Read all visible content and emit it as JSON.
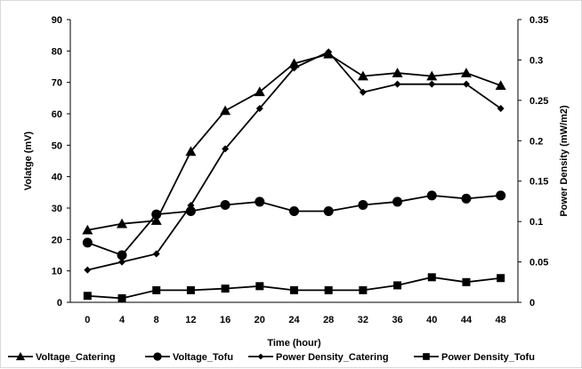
{
  "chart_data": {
    "type": "line",
    "x": [
      0,
      4,
      8,
      12,
      16,
      20,
      24,
      28,
      32,
      36,
      40,
      44,
      48
    ],
    "xlabel": "Time (hour)",
    "ylabel": "Volatge (mV)",
    "y2label": "Power Density (mW/m2)",
    "ylim": [
      0,
      90
    ],
    "y2lim": [
      0,
      0.35
    ],
    "yticks": [
      "0",
      "10",
      "20",
      "30",
      "40",
      "50",
      "60",
      "70",
      "80",
      "90"
    ],
    "y2ticks": [
      "0",
      "0.05",
      "0.1",
      "0.15",
      "0.2",
      "0.25",
      "0.3",
      "0.35"
    ],
    "grid": false,
    "legend_position": "bottom",
    "series": [
      {
        "name": "Voltage_Catering",
        "axis": "left",
        "marker": "triangle",
        "values": [
          23,
          25,
          26,
          48,
          61,
          67,
          76,
          79,
          72,
          73,
          72,
          73,
          69
        ]
      },
      {
        "name": "Voltage_Tofu",
        "axis": "left",
        "marker": "circle",
        "values": [
          19,
          15,
          28,
          29,
          31,
          32,
          29,
          29,
          31,
          32,
          34,
          33,
          34
        ]
      },
      {
        "name": "Power Density_Catering",
        "axis": "right",
        "marker": "diamond",
        "values": [
          0.04,
          0.05,
          0.06,
          0.12,
          0.19,
          0.24,
          0.29,
          0.31,
          0.26,
          0.27,
          0.27,
          0.27,
          0.24
        ]
      },
      {
        "name": "Power Density_Tofu",
        "axis": "right",
        "marker": "square",
        "values": [
          0.008,
          0.005,
          0.015,
          0.015,
          0.017,
          0.02,
          0.015,
          0.015,
          0.015,
          0.021,
          0.031,
          0.025,
          0.03
        ]
      }
    ]
  }
}
